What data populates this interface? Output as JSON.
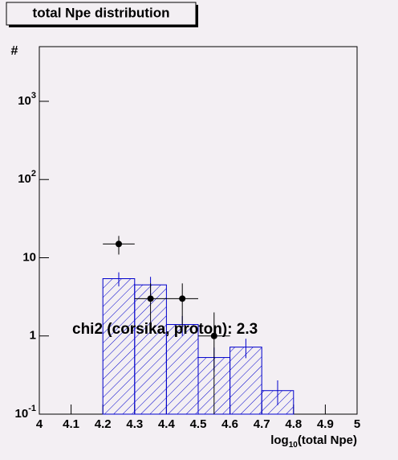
{
  "chart_data": {
    "type": "histogram",
    "title": "total Npe distribution",
    "x_label": {
      "base": "log",
      "sub": "10",
      "rest": "(total Npe)"
    },
    "y_label": "#",
    "xlim": [
      4,
      5
    ],
    "ylim": [
      0.1,
      5000
    ],
    "log_y": true,
    "xticks": [
      4,
      4.1,
      4.2,
      4.3,
      4.4,
      4.5,
      4.6,
      4.7,
      4.8,
      4.9,
      5
    ],
    "yticks": [
      {
        "value": 0.1,
        "label": "10",
        "sup": "-1"
      },
      1,
      10,
      {
        "value": 100,
        "label": "10",
        "sup": "2"
      },
      {
        "value": 1000,
        "label": "10",
        "sup": "3"
      }
    ],
    "bins": [
      4.2,
      4.3,
      4.4,
      4.5,
      4.6,
      4.7,
      4.8
    ],
    "histogram": {
      "color": "#0000cc",
      "values": [
        5.4,
        4.5,
        1.4,
        0.53,
        0.72,
        0.2
      ],
      "errors": [
        1.1,
        1.2,
        0.4,
        0.18,
        0.2,
        0.07
      ]
    },
    "points": {
      "color": "#000000",
      "x": [
        4.25,
        4.35,
        4.45,
        4.55
      ],
      "values": [
        15,
        3,
        3,
        1
      ],
      "errors": [
        4,
        1.7,
        1.7,
        1
      ],
      "x_errors": [
        0.05,
        0.05,
        0.05,
        0.05
      ]
    },
    "annotation": "chi2 (corsika, proton): 2.3"
  }
}
